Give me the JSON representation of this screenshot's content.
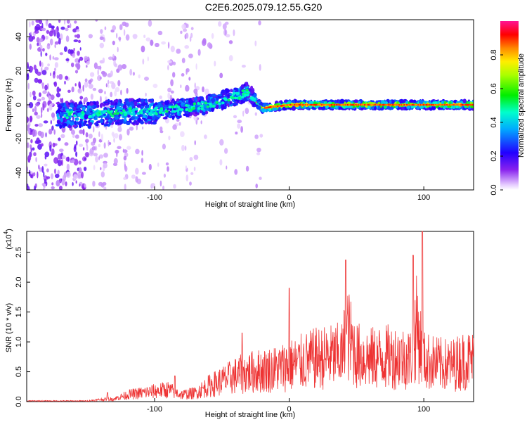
{
  "title": "C2E6.2025.079.12.55.G20",
  "chart_data": [
    {
      "type": "heatmap",
      "xlabel": "Height of straight line (km)",
      "ylabel": "Frequency (Hz)",
      "xlim": [
        -195,
        137
      ],
      "ylim": [
        -50,
        50
      ],
      "x_ticks": [
        -100,
        0,
        100
      ],
      "y_ticks": [
        -40,
        -20,
        0,
        20,
        40
      ],
      "colorbar": {
        "label": "Normalized spectral amplitude",
        "range": [
          0,
          1
        ],
        "ticks": [
          "0.0",
          "0.2",
          "0.4",
          "0.6",
          "0.8"
        ],
        "colormap": "rainbow (white-violet-blue-cyan-green-yellow-red-magenta)"
      },
      "signal_center_track": {
        "x": [
          -170,
          -150,
          -120,
          -100,
          -80,
          -60,
          -45,
          -35,
          -30,
          -25,
          -20,
          -10,
          0,
          20,
          50,
          100,
          135
        ],
        "y": [
          -6,
          -6,
          -4,
          -4,
          -2,
          0,
          4,
          6,
          8,
          2,
          -2,
          -1,
          0,
          0,
          0,
          0,
          0
        ]
      }
    },
    {
      "type": "line",
      "xlabel": "Height of straight line (km)",
      "ylabel": "SNR (10 * v/v)",
      "y_multiplier": "(x10",
      "y_multiplier_exp": "4",
      "y_multiplier_close": ")",
      "xlim": [
        -195,
        137
      ],
      "ylim": [
        0,
        2.85
      ],
      "x_ticks": [
        -100,
        0,
        100
      ],
      "y_ticks": [
        "0.0",
        "0.5",
        "1.0",
        "1.5",
        "2.0",
        "2.5"
      ],
      "series": [
        {
          "color": "#ee3333",
          "envelope_x": [
            -195,
            -150,
            -140,
            -130,
            -120,
            -100,
            -90,
            -80,
            -70,
            -60,
            -50,
            -40,
            -30,
            -20,
            -10,
            0,
            10,
            20,
            30,
            40,
            42,
            50,
            60,
            70,
            80,
            90,
            95,
            100,
            110,
            120,
            130,
            137
          ],
          "envelope_y": [
            0.02,
            0.02,
            0.06,
            0.08,
            0.2,
            0.3,
            0.35,
            0.2,
            0.25,
            0.45,
            0.6,
            0.75,
            0.85,
            0.9,
            0.95,
            1.05,
            1.15,
            1.25,
            1.3,
            1.35,
            2.1,
            1.35,
            1.25,
            1.3,
            1.3,
            1.25,
            2.2,
            1.2,
            1.1,
            1.05,
            1.2,
            1.2
          ],
          "peaks_x": [
            -135,
            -85,
            -35,
            0,
            42,
            92,
            99
          ],
          "peaks_y": [
            0.15,
            0.43,
            1.15,
            1.9,
            2.37,
            2.45,
            2.85
          ]
        }
      ]
    }
  ]
}
